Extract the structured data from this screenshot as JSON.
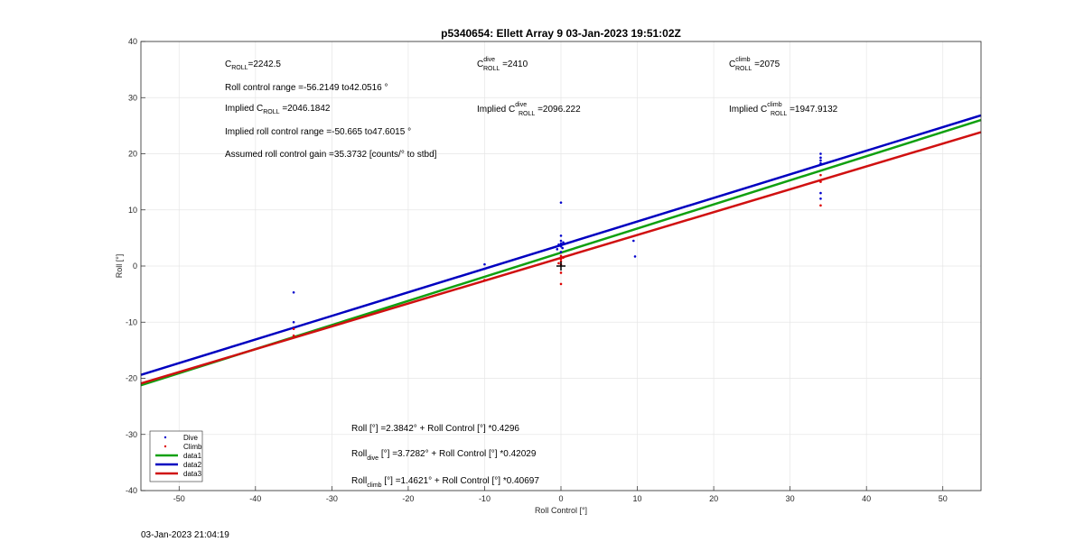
{
  "chart_data": {
    "type": "scatter",
    "title": "p5340654: Ellett Array 9 03-Jan-2023 19:51:02Z",
    "xlabel": "Roll Control [°]",
    "ylabel": "Roll [°]",
    "xlim": [
      -55,
      55
    ],
    "ylim": [
      -40,
      40
    ],
    "xticks": [
      -50,
      -40,
      -30,
      -20,
      -10,
      0,
      10,
      20,
      30,
      40,
      50
    ],
    "yticks": [
      -40,
      -30,
      -20,
      -10,
      0,
      10,
      20,
      30,
      40
    ],
    "grid": true,
    "legend": {
      "position": "bottom-left",
      "entries": [
        "Dive",
        "Climb",
        "data1",
        "data2",
        "data3"
      ]
    },
    "series": [
      {
        "name": "Dive",
        "kind": "points",
        "color": "#0000cc",
        "x": [
          -35,
          -35,
          -35,
          -10,
          -10,
          -0.5,
          -0.3,
          0,
          0,
          0,
          0,
          0,
          0,
          0.2,
          0.3,
          9.5,
          9.7,
          34,
          34,
          34,
          34,
          34,
          34
        ],
        "y": [
          -4.7,
          -10,
          -11,
          0.3,
          -0.5,
          3,
          3.8,
          11.3,
          5.4,
          4.5,
          4,
          3.5,
          2.5,
          3.2,
          4.2,
          4.5,
          1.7,
          20,
          19.3,
          18.8,
          18.3,
          13,
          12
        ]
      },
      {
        "name": "Climb",
        "kind": "points",
        "color": "#dd0000",
        "x": [
          -35,
          -35,
          -10,
          0,
          0,
          0,
          0,
          0,
          0,
          -0.3,
          0.3,
          34,
          34,
          34
        ],
        "y": [
          -11.2,
          -12.4,
          -2.5,
          1.8,
          1.2,
          0.8,
          0.3,
          -1.2,
          -3.2,
          0.5,
          1.5,
          16.2,
          15,
          10.8
        ]
      },
      {
        "name": "data1",
        "kind": "line",
        "color": "#10a010",
        "intercept": 2.3842,
        "slope": 0.4296
      },
      {
        "name": "data2",
        "kind": "line",
        "color": "#0000c0",
        "intercept": 3.7282,
        "slope": 0.42029
      },
      {
        "name": "data3",
        "kind": "line",
        "color": "#d01010",
        "intercept": 1.4621,
        "slope": 0.40697
      }
    ],
    "marker": {
      "x": 0,
      "y": 0,
      "shape": "plus"
    }
  },
  "annotations": {
    "c_roll": {
      "base": "C",
      "sub": "ROLL",
      "value": "=2242.5"
    },
    "c_dive": {
      "base": "C",
      "sup": "dive",
      "sub": "ROLL",
      "value": " =2410"
    },
    "c_climb": {
      "base": "C",
      "sup": "climb",
      "sub": "ROLL",
      "value": " =2075"
    },
    "roll_range": "Roll control range =-56.2149 to42.0516 °",
    "implied_c_roll": {
      "pre": "Implied C",
      "sub": "ROLL",
      "value": " =2046.1842"
    },
    "implied_c_dive": {
      "pre": "Implied C",
      "sup": "dive",
      "sub": "ROLL",
      "value": " =2096.222"
    },
    "implied_c_climb": {
      "pre": "Implied C",
      "sup": "climb",
      "sub": "ROLL",
      "value": " =1947.9132"
    },
    "implied_range": "Implied roll control range =-50.665 to47.6015 °",
    "gain": "Assumed roll control gain =35.3732 [counts/° to stbd]",
    "eq_all": "Roll [°] =2.3842° + Roll Control [°] *0.4296",
    "eq_dive": {
      "pre": "Roll",
      "sub": "dive",
      "post": " [°] =3.7282° + Roll Control [°] *0.42029"
    },
    "eq_climb": {
      "pre": "Roll",
      "sub": "climb",
      "post": " [°] =1.4621° + Roll Control [°] *0.40697"
    }
  },
  "footer": {
    "timestamp": "03-Jan-2023 21:04:19"
  }
}
